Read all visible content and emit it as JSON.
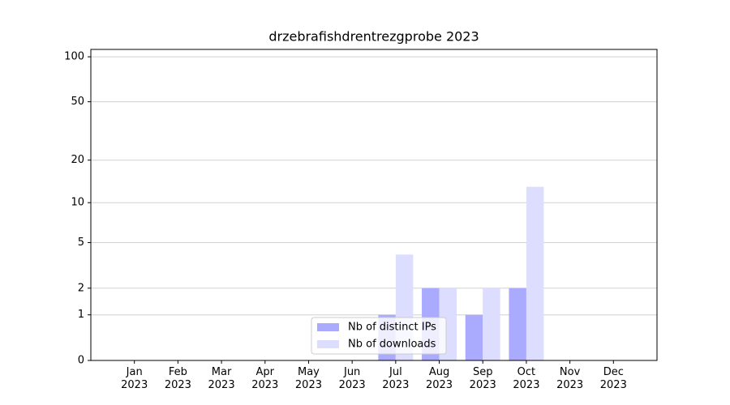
{
  "chart_data": {
    "type": "bar",
    "title": "drzebrafishdrentrezgprobe 2023",
    "categories": [
      "Jan\n2023",
      "Feb\n2023",
      "Mar\n2023",
      "Apr\n2023",
      "May\n2023",
      "Jun\n2023",
      "Jul\n2023",
      "Aug\n2023",
      "Sep\n2023",
      "Oct\n2023",
      "Nov\n2023",
      "Dec\n2023"
    ],
    "series": [
      {
        "name": "Nb of distinct IPs",
        "color": "#aaaaff",
        "values": [
          0,
          0,
          0,
          0,
          0,
          0,
          1,
          2,
          1,
          2,
          0,
          0
        ]
      },
      {
        "name": "Nb of downloads",
        "color": "#ddddff",
        "values": [
          0,
          0,
          0,
          0,
          0,
          0,
          4,
          2,
          2,
          13,
          0,
          0
        ]
      }
    ],
    "yscale": "log1p",
    "ylim": [
      0,
      112
    ],
    "yticks": [
      0,
      1,
      2,
      5,
      10,
      20,
      50,
      100
    ],
    "grid": true,
    "legend": "lower center"
  }
}
